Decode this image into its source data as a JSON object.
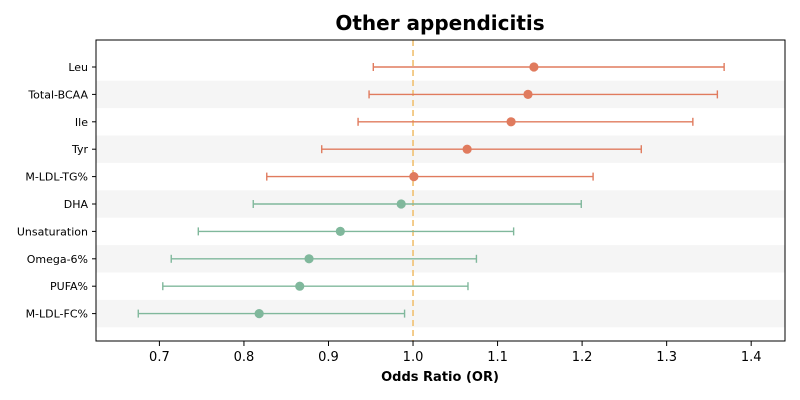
{
  "chart_data": {
    "type": "forest",
    "title": "Other appendicitis",
    "xlabel": "Odds Ratio (OR)",
    "ylabel": "",
    "xlim": [
      0.625,
      1.44
    ],
    "xticks": [
      0.7,
      0.8,
      0.9,
      1.0,
      1.1,
      1.2,
      1.3,
      1.4
    ],
    "xtick_labels": [
      "0.7",
      "0.8",
      "0.9",
      "1.0",
      "1.1",
      "1.2",
      "1.3",
      "1.4"
    ],
    "reference_line": 1.0,
    "colors": {
      "positive": "#e07b5e",
      "negative": "#80b89c",
      "reference": "#f0c070",
      "band": "#f5f5f5"
    },
    "rows": [
      {
        "label": "Leu",
        "or": 1.143,
        "lower": 0.953,
        "upper": 1.368,
        "group": "positive"
      },
      {
        "label": "Total-BCAA",
        "or": 1.136,
        "lower": 0.948,
        "upper": 1.36,
        "group": "positive"
      },
      {
        "label": "Ile",
        "or": 1.116,
        "lower": 0.935,
        "upper": 1.331,
        "group": "positive"
      },
      {
        "label": "Tyr",
        "or": 1.064,
        "lower": 0.892,
        "upper": 1.27,
        "group": "positive"
      },
      {
        "label": "M-LDL-TG%",
        "or": 1.001,
        "lower": 0.827,
        "upper": 1.213,
        "group": "positive"
      },
      {
        "label": "DHA",
        "or": 0.986,
        "lower": 0.811,
        "upper": 1.199,
        "group": "negative"
      },
      {
        "label": "Unsaturation",
        "or": 0.914,
        "lower": 0.746,
        "upper": 1.119,
        "group": "negative"
      },
      {
        "label": "Omega-6%",
        "or": 0.877,
        "lower": 0.714,
        "upper": 1.075,
        "group": "negative"
      },
      {
        "label": "PUFA%",
        "or": 0.866,
        "lower": 0.704,
        "upper": 1.065,
        "group": "negative"
      },
      {
        "label": "M-LDL-FC%",
        "or": 0.818,
        "lower": 0.675,
        "upper": 0.99,
        "group": "negative"
      }
    ]
  }
}
